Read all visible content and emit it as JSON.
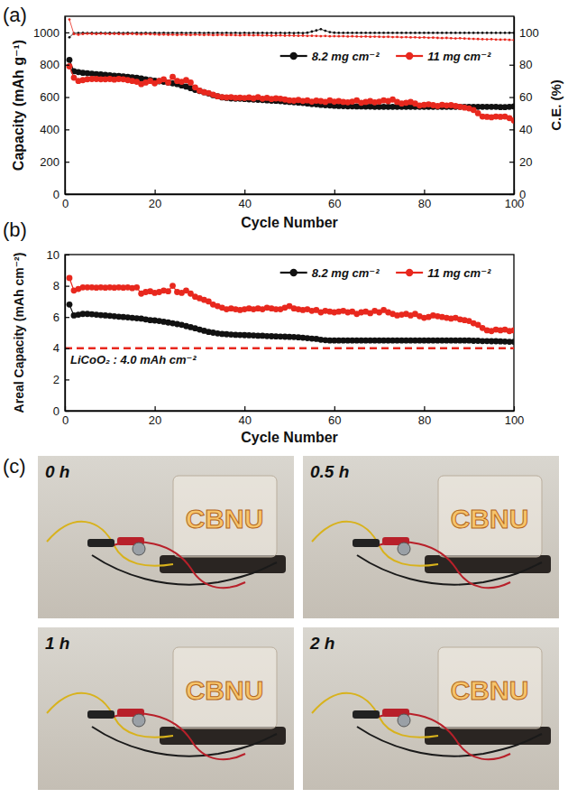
{
  "chart_data": [
    {
      "type": "line",
      "panel": "(a)",
      "x_label": "Cycle Number",
      "y_label": "Capacity (mAh g⁻¹)",
      "y2_label": "C.E. (%)",
      "xlim": [
        0,
        100
      ],
      "xticks": [
        0,
        20,
        40,
        60,
        80,
        100
      ],
      "ylim": [
        0,
        1100
      ],
      "yticks": [
        0,
        200,
        400,
        600,
        800,
        1000
      ],
      "y2lim": [
        0,
        110
      ],
      "y2ticks": [
        0,
        20,
        40,
        60,
        80,
        100
      ],
      "legend": "upper right",
      "x": [
        1,
        2,
        3,
        4,
        5,
        6,
        7,
        8,
        9,
        10,
        11,
        12,
        13,
        14,
        15,
        16,
        17,
        18,
        19,
        20,
        21,
        22,
        23,
        24,
        25,
        26,
        27,
        28,
        29,
        30,
        31,
        32,
        33,
        34,
        35,
        36,
        37,
        38,
        39,
        40,
        41,
        42,
        43,
        44,
        45,
        46,
        47,
        48,
        49,
        50,
        51,
        52,
        53,
        54,
        55,
        56,
        57,
        58,
        59,
        60,
        61,
        62,
        63,
        64,
        65,
        66,
        67,
        68,
        69,
        70,
        71,
        72,
        73,
        74,
        75,
        76,
        77,
        78,
        79,
        80,
        81,
        82,
        83,
        84,
        85,
        86,
        87,
        88,
        89,
        90,
        91,
        92,
        93,
        94,
        95,
        96,
        97,
        98,
        99,
        100
      ],
      "series": [
        {
          "name": "8.2 mg cm⁻²",
          "color": "#111111",
          "marker": "circle",
          "line_style": "solid",
          "values": [
            830,
            760,
            755,
            750,
            748,
            745,
            742,
            740,
            738,
            735,
            732,
            730,
            728,
            725,
            722,
            720,
            715,
            710,
            705,
            702,
            698,
            695,
            690,
            685,
            680,
            672,
            665,
            655,
            645,
            638,
            630,
            622,
            612,
            605,
            598,
            595,
            592,
            590,
            590,
            588,
            586,
            585,
            583,
            582,
            580,
            578,
            577,
            575,
            572,
            570,
            568,
            566,
            564,
            560,
            557,
            555,
            552,
            550,
            548,
            546,
            545,
            544,
            543,
            543,
            542,
            542,
            541,
            541,
            540,
            540,
            540,
            540,
            540,
            540,
            540,
            540,
            540,
            540,
            540,
            540,
            540,
            540,
            540,
            540,
            540,
            540,
            540,
            540,
            540,
            540,
            540,
            540,
            540,
            540,
            540,
            540,
            538,
            538,
            540,
            542
          ]
        },
        {
          "name": "11 mg cm⁻²",
          "color": "#e8281e",
          "marker": "circle",
          "line_style": "solid",
          "values": [
            790,
            720,
            700,
            705,
            710,
            712,
            712,
            710,
            710,
            712,
            708,
            712,
            710,
            705,
            700,
            695,
            680,
            690,
            700,
            685,
            700,
            710,
            690,
            725,
            700,
            695,
            705,
            690,
            660,
            640,
            630,
            625,
            615,
            605,
            600,
            598,
            600,
            595,
            596,
            594,
            598,
            592,
            600,
            590,
            595,
            588,
            592,
            590,
            585,
            580,
            578,
            582,
            576,
            580,
            572,
            578,
            575,
            570,
            580,
            572,
            575,
            570,
            568,
            572,
            580,
            565,
            570,
            575,
            568,
            572,
            580,
            575,
            585,
            570,
            560,
            565,
            570,
            560,
            548,
            552,
            555,
            550,
            545,
            552,
            548,
            550,
            545,
            540,
            535,
            530,
            520,
            500,
            480,
            478,
            475,
            480,
            478,
            480,
            470,
            455
          ]
        },
        {
          "color": "#111111",
          "marker": "dot",
          "line_style": "solid",
          "axis": "y2",
          "values": [
            97,
            99.5,
            99.6,
            99.7,
            99.6,
            99.7,
            99.6,
            99.7,
            99.6,
            99.7,
            99.6,
            99.7,
            99.6,
            99.7,
            99.6,
            99.7,
            99.6,
            99.7,
            99.6,
            99.7,
            99.6,
            99.7,
            99.6,
            99.7,
            99.6,
            99.7,
            99.6,
            99.7,
            99.6,
            99.7,
            99.6,
            99.7,
            99.6,
            99.7,
            99.6,
            99.7,
            99.6,
            99.7,
            99.6,
            99.7,
            99.6,
            99.7,
            99.6,
            99.7,
            99.6,
            99.7,
            99.6,
            99.7,
            99.6,
            99.7,
            99.6,
            99.7,
            99.6,
            99.8,
            100.5,
            101.2,
            102,
            101,
            100.2,
            99.8,
            99.7,
            99.7,
            99.7,
            99.7,
            99.7,
            99.7,
            99.7,
            99.7,
            99.7,
            99.7,
            99.7,
            99.7,
            99.7,
            99.7,
            99.7,
            99.7,
            99.7,
            99.7,
            99.7,
            99.7,
            99.7,
            99.7,
            99.7,
            99.7,
            99.7,
            99.7,
            99.7,
            99.7,
            99.7,
            99.7,
            99.7,
            99.7,
            99.7,
            99.7,
            99.7,
            99.7,
            99.7,
            99.7,
            99.7,
            99.7
          ]
        },
        {
          "color": "#e8281e",
          "marker": "dot",
          "line_style": "solid",
          "axis": "y2",
          "values": [
            108,
            99,
            98.6,
            99,
            99.2,
            99.1,
            99,
            99.2,
            99.1,
            99,
            99.1,
            99,
            98.9,
            99,
            99.1,
            98.9,
            98.8,
            99,
            98.9,
            98.8,
            98.6,
            98.7,
            98.5,
            98.6,
            98.4,
            98.6,
            98.5,
            98.4,
            98.6,
            98.5,
            98.4,
            98.5,
            98.3,
            98.4,
            98.5,
            98.3,
            98.4,
            98.3,
            98.2,
            98.4,
            98.3,
            98.2,
            98.3,
            98.1,
            98.2,
            98.0,
            98.1,
            98.2,
            98.0,
            98.1,
            98.0,
            97.9,
            98.0,
            97.8,
            97.9,
            97.8,
            97.7,
            97.8,
            97.6,
            97.7,
            97.6,
            97.7,
            97.5,
            97.6,
            97.5,
            97.4,
            97.5,
            97.3,
            97.4,
            97.3,
            97.2,
            97.3,
            97.1,
            97.2,
            97.0,
            97.1,
            96.9,
            97.0,
            96.8,
            96.9,
            96.7,
            96.8,
            96.6,
            96.5,
            96.6,
            96.4,
            96.3,
            96.4,
            96.2,
            96.1,
            96.0,
            95.9,
            95.8,
            95.7,
            95.8,
            95.6,
            95.5,
            95.6,
            95.4,
            95.3
          ]
        }
      ]
    },
    {
      "type": "line",
      "panel": "(b)",
      "x_label": "Cycle Number",
      "y_label": "Areal Capacity (mAh cm⁻²)",
      "xlim": [
        0,
        100
      ],
      "xticks": [
        0,
        20,
        40,
        60,
        80,
        100
      ],
      "ylim": [
        0,
        10
      ],
      "yticks": [
        0,
        2,
        4,
        6,
        8,
        10
      ],
      "legend": "upper right",
      "reference_lines": [
        {
          "value": 4.0,
          "label": "LiCoO₂ : 4.0 mAh cm⁻²",
          "color": "#e8281e",
          "line_style": "dashed"
        }
      ],
      "x": [
        1,
        2,
        3,
        4,
        5,
        6,
        7,
        8,
        9,
        10,
        11,
        12,
        13,
        14,
        15,
        16,
        17,
        18,
        19,
        20,
        21,
        22,
        23,
        24,
        25,
        26,
        27,
        28,
        29,
        30,
        31,
        32,
        33,
        34,
        35,
        36,
        37,
        38,
        39,
        40,
        41,
        42,
        43,
        44,
        45,
        46,
        47,
        48,
        49,
        50,
        51,
        52,
        53,
        54,
        55,
        56,
        57,
        58,
        59,
        60,
        61,
        62,
        63,
        64,
        65,
        66,
        67,
        68,
        69,
        70,
        71,
        72,
        73,
        74,
        75,
        76,
        77,
        78,
        79,
        80,
        81,
        82,
        83,
        84,
        85,
        86,
        87,
        88,
        89,
        90,
        91,
        92,
        93,
        94,
        95,
        96,
        97,
        98,
        99,
        100
      ],
      "series": [
        {
          "name": "8.2 mg cm⁻²",
          "color": "#111111",
          "marker": "circle",
          "line_style": "solid",
          "values": [
            6.8,
            6.1,
            6.15,
            6.2,
            6.2,
            6.18,
            6.15,
            6.12,
            6.1,
            6.08,
            6.05,
            6.02,
            6.0,
            5.98,
            5.95,
            5.92,
            5.9,
            5.85,
            5.8,
            5.78,
            5.75,
            5.7,
            5.65,
            5.6,
            5.55,
            5.5,
            5.42,
            5.35,
            5.28,
            5.2,
            5.12,
            5.05,
            5.0,
            4.95,
            4.92,
            4.9,
            4.88,
            4.86,
            4.85,
            4.84,
            4.83,
            4.82,
            4.8,
            4.8,
            4.78,
            4.77,
            4.76,
            4.75,
            4.74,
            4.73,
            4.72,
            4.7,
            4.68,
            4.65,
            4.62,
            4.6,
            4.55,
            4.52,
            4.5,
            4.5,
            4.5,
            4.5,
            4.5,
            4.5,
            4.5,
            4.5,
            4.5,
            4.5,
            4.5,
            4.5,
            4.5,
            4.5,
            4.5,
            4.5,
            4.5,
            4.5,
            4.5,
            4.5,
            4.5,
            4.5,
            4.5,
            4.5,
            4.5,
            4.5,
            4.5,
            4.5,
            4.5,
            4.5,
            4.5,
            4.5,
            4.48,
            4.48,
            4.46,
            4.46,
            4.45,
            4.45,
            4.44,
            4.43,
            4.42,
            4.42
          ]
        },
        {
          "name": "11 mg cm⁻²",
          "color": "#e8281e",
          "marker": "circle",
          "line_style": "solid",
          "values": [
            8.5,
            7.7,
            7.8,
            7.9,
            7.9,
            7.9,
            7.88,
            7.9,
            7.88,
            7.9,
            7.88,
            7.9,
            7.88,
            7.9,
            7.85,
            7.9,
            7.5,
            7.6,
            7.65,
            7.55,
            7.6,
            7.7,
            7.65,
            8.0,
            7.6,
            7.55,
            7.7,
            7.5,
            7.3,
            7.2,
            7.1,
            7.0,
            6.8,
            6.7,
            6.6,
            6.5,
            6.55,
            6.5,
            6.45,
            6.5,
            6.55,
            6.5,
            6.55,
            6.5,
            6.6,
            6.55,
            6.5,
            6.5,
            6.6,
            6.7,
            6.55,
            6.5,
            6.45,
            6.5,
            6.4,
            6.45,
            6.3,
            6.4,
            6.35,
            6.3,
            6.35,
            6.4,
            6.3,
            6.35,
            6.2,
            6.3,
            6.35,
            6.25,
            6.4,
            6.3,
            6.45,
            6.3,
            6.2,
            6.1,
            6.15,
            6.2,
            6.1,
            6.2,
            6.05,
            5.95,
            6.0,
            6.1,
            6.05,
            6.0,
            5.95,
            5.9,
            5.95,
            5.85,
            5.8,
            5.75,
            5.6,
            5.5,
            5.3,
            5.15,
            5.1,
            5.2,
            5.15,
            5.2,
            5.1,
            5.15
          ]
        }
      ]
    }
  ],
  "photo_panel": {
    "panel": "(c)",
    "sign_text": "CBNU",
    "frames": [
      {
        "time": "0 h"
      },
      {
        "time": "0.5 h"
      },
      {
        "time": "1 h"
      },
      {
        "time": "2 h"
      }
    ]
  }
}
